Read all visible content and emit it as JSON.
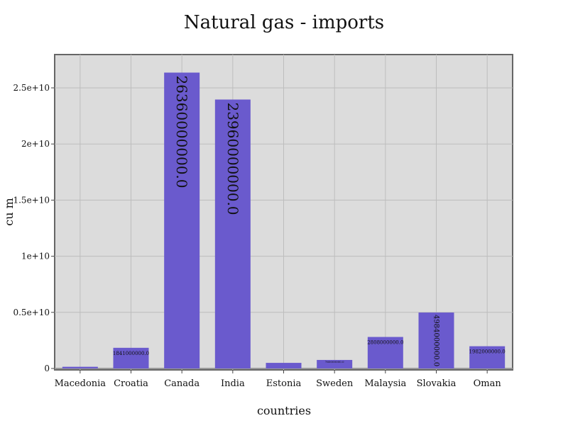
{
  "chart_data": {
    "type": "bar",
    "title": "Natural gas - imports",
    "xlabel": "countries",
    "ylabel": "cu m",
    "categories": [
      "Macedonia",
      "Croatia",
      "Canada",
      "India",
      "Estonia",
      "Sweden",
      "Malaysia",
      "Slovakia",
      "Oman"
    ],
    "values": [
      150000000,
      1841000000,
      26360000000,
      23960000000,
      500000000,
      760000000,
      2808000000,
      4984000000,
      1982000000
    ],
    "value_labels": [
      "",
      "1841000000.0",
      "26360000000.0",
      "23960000000.0",
      "",
      "760000000.0",
      "2808000000.0",
      "4984000000.0",
      "1982000000.0"
    ],
    "ylim": [
      0,
      27500000000
    ],
    "yticks": [
      0,
      5000000000,
      10000000000,
      15000000000,
      20000000000,
      25000000000
    ],
    "ytick_labels": [
      "0",
      "0.5e+10",
      "1e+10",
      "1.5e+10",
      "2e+10",
      "2.5e+10"
    ],
    "grid": true,
    "bar_color": "#6a5acd",
    "plot_background": "#dcdcdc"
  }
}
